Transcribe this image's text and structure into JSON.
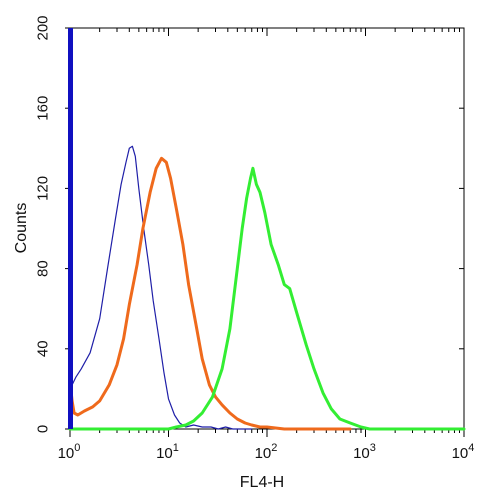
{
  "chart_data": {
    "type": "line",
    "xlabel": "FL4-H",
    "ylabel": "Counts",
    "x_scale": "log",
    "xlim": [
      1,
      10000
    ],
    "ylim": [
      0,
      200
    ],
    "x_ticks": [
      {
        "value": 1,
        "base": "10",
        "exp": "0"
      },
      {
        "value": 10,
        "base": "10",
        "exp": "1"
      },
      {
        "value": 100,
        "base": "10",
        "exp": "2"
      },
      {
        "value": 1000,
        "base": "10",
        "exp": "3"
      },
      {
        "value": 10000,
        "base": "10",
        "exp": "4"
      }
    ],
    "y_ticks": [
      {
        "value": 0,
        "label": "0"
      },
      {
        "value": 40,
        "label": "40"
      },
      {
        "value": 80,
        "label": "80"
      },
      {
        "value": 120,
        "label": "120"
      },
      {
        "value": 160,
        "label": "160"
      },
      {
        "value": 200,
        "label": "200"
      }
    ],
    "grid": false,
    "legend": "none",
    "series": [
      {
        "color": "#1f1fa8",
        "stroke_width": 1.2,
        "x": [
          1.0,
          1.05,
          1.15,
          1.3,
          1.6,
          2.0,
          2.4,
          2.9,
          3.3,
          3.7,
          4.0,
          4.3,
          4.6,
          5.0,
          5.6,
          6.3,
          7.0,
          8.0,
          9.0,
          10.0,
          11.5,
          13.0,
          15.0,
          18.0,
          22.0,
          27.0,
          32.0,
          38.0,
          45.0,
          55.0,
          70.0
        ],
        "y": [
          26,
          22,
          26,
          30,
          38,
          55,
          80,
          105,
          122,
          133,
          140,
          141,
          136,
          120,
          100,
          82,
          64,
          45,
          28,
          15,
          7,
          3,
          1,
          2,
          1,
          1,
          0,
          1,
          0,
          0,
          0
        ]
      },
      {
        "color": "#ef6a1c",
        "stroke_width": 3,
        "x": [
          1.0,
          1.02,
          1.05,
          1.1,
          1.2,
          1.4,
          1.7,
          2.0,
          2.5,
          3.0,
          3.5,
          4.0,
          4.8,
          5.5,
          6.5,
          7.5,
          8.5,
          9.5,
          10.5,
          12.0,
          14.0,
          16.0,
          19.0,
          22.0,
          26.0,
          30.0,
          35.0,
          42.0,
          50.0,
          60.0,
          70.0,
          85.0,
          100.0,
          150.0,
          300.0,
          700.0
        ],
        "y": [
          0,
          20,
          14,
          8,
          7,
          9,
          11,
          14,
          22,
          32,
          45,
          62,
          82,
          100,
          118,
          130,
          135,
          133,
          125,
          110,
          92,
          72,
          52,
          35,
          22,
          16,
          12,
          8,
          5,
          3,
          2,
          1,
          1,
          0,
          0,
          0
        ]
      },
      {
        "color": "#33ee33",
        "stroke_width": 3,
        "x": [
          1.0,
          10.0,
          12.0,
          15.0,
          18.0,
          22.0,
          28.0,
          35.0,
          42.0,
          50.0,
          56.0,
          62.0,
          68.0,
          72.0,
          78.0,
          85.0,
          95.0,
          110.0,
          130.0,
          150.0,
          170.0,
          200.0,
          250.0,
          300.0,
          370.0,
          450.0,
          550.0,
          700.0,
          900.0,
          1100.0,
          10000.0
        ],
        "y": [
          0,
          0,
          1,
          2,
          4,
          8,
          16,
          30,
          50,
          80,
          100,
          115,
          125,
          130,
          122,
          118,
          108,
          92,
          82,
          72,
          70,
          58,
          42,
          30,
          18,
          10,
          5,
          3,
          1,
          0,
          0
        ]
      }
    ]
  }
}
